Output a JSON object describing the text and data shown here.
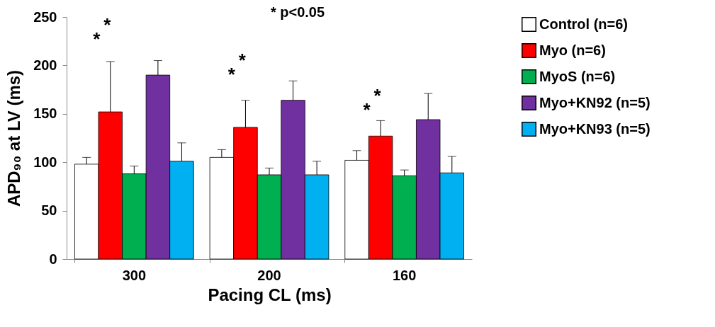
{
  "chart_data": {
    "type": "bar",
    "xlabel": "Pacing CL (ms)",
    "ylabel": "APD₉₀ at LV (ms)",
    "categories": [
      "300",
      "200",
      "160"
    ],
    "series": [
      {
        "name": "Control (n=6)",
        "color": "#ffffff",
        "values": [
          98,
          105,
          102
        ],
        "errors": [
          [
            98,
            105
          ],
          [
            105,
            113
          ],
          [
            102,
            112
          ]
        ]
      },
      {
        "name": "Myo (n=6)",
        "color": "#ff0000",
        "values": [
          152,
          136,
          127
        ],
        "errors": [
          [
            152,
            204
          ],
          [
            136,
            164
          ],
          [
            127,
            143
          ]
        ]
      },
      {
        "name": "MyoS (n=6)",
        "color": "#00b050",
        "values": [
          88,
          87,
          86
        ],
        "errors": [
          [
            88,
            96
          ],
          [
            87,
            94
          ],
          [
            86,
            92
          ]
        ]
      },
      {
        "name": "Myo+KN92 (n=5)",
        "color": "#7030a0",
        "values": [
          190,
          164,
          144
        ],
        "errors": [
          [
            190,
            205
          ],
          [
            164,
            184
          ],
          [
            144,
            171
          ]
        ]
      },
      {
        "name": "Myo+KN93 (n=5)",
        "color": "#00b0f0",
        "values": [
          101,
          87,
          89
        ],
        "errors": [
          [
            101,
            120
          ],
          [
            87,
            101
          ],
          [
            89,
            106
          ]
        ]
      }
    ],
    "ylim": [
      0,
      250
    ],
    "yticks": [
      0,
      50,
      100,
      150,
      200,
      250
    ],
    "grid": false,
    "legend": "right",
    "annotations": [
      "* p<0.05",
      "*",
      "*",
      "*",
      "*",
      "*",
      "*"
    ]
  }
}
